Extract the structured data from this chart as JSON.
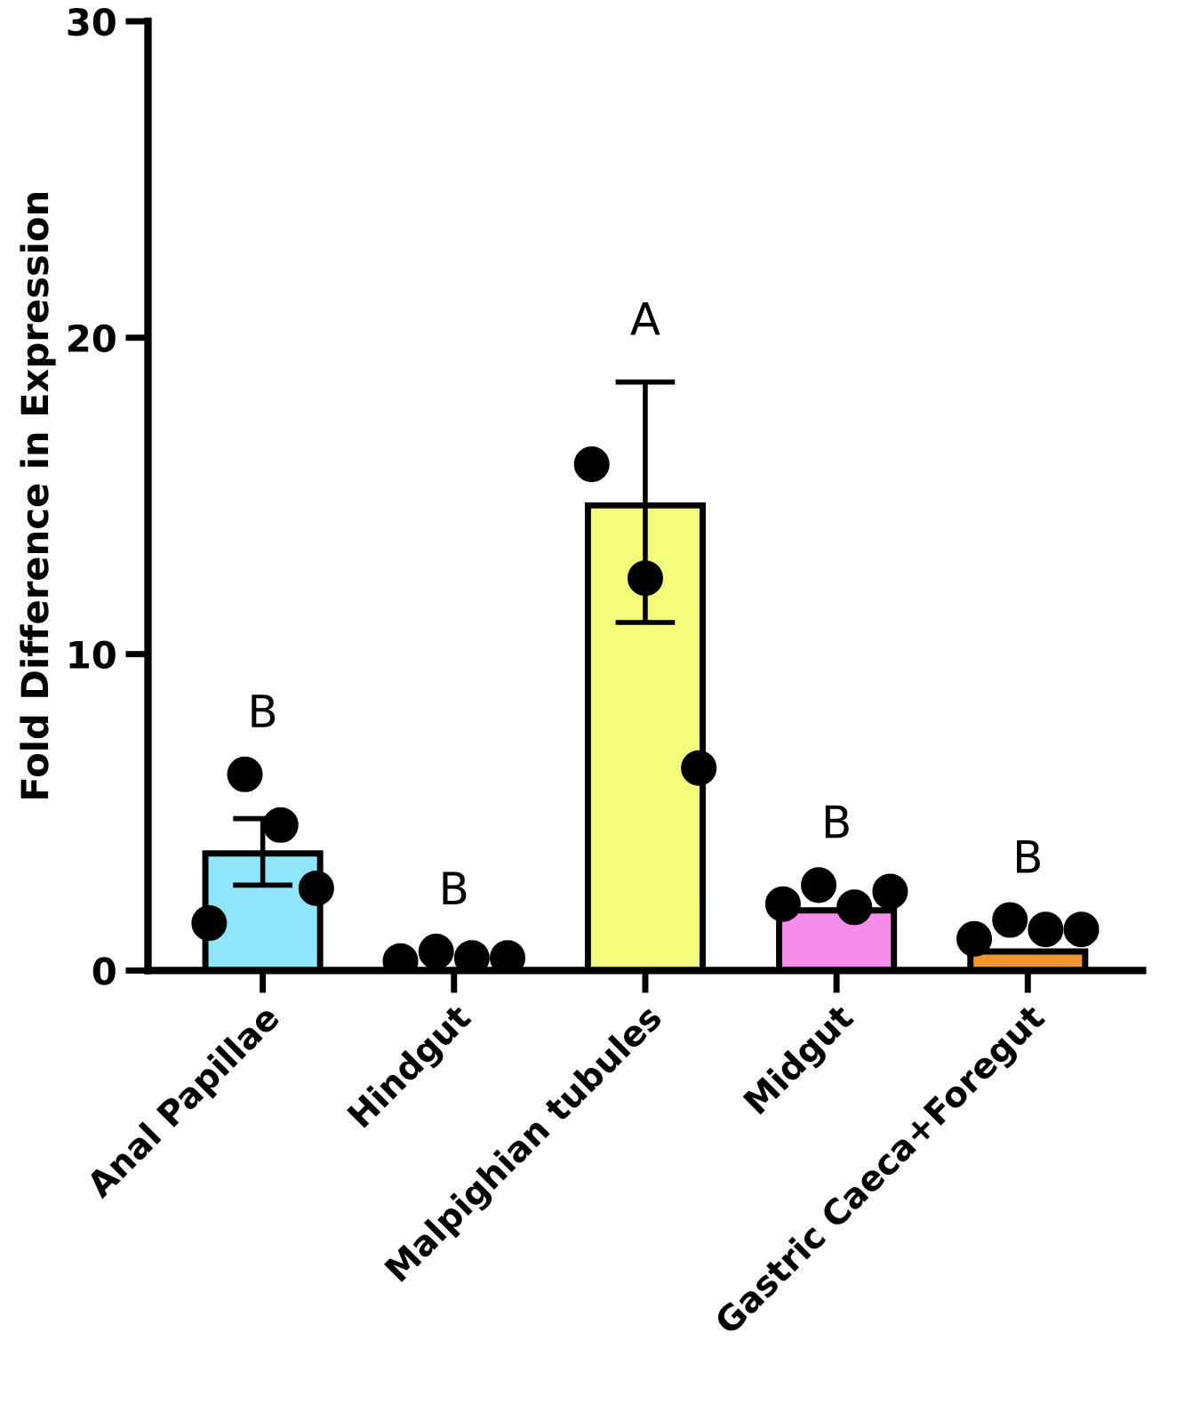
{
  "chart_data": {
    "type": "bar",
    "ylabel": "Fold Difference in Expression",
    "categories": [
      "Anal Papillae",
      "Hindgut",
      "Malpighian tubules",
      "Midgut",
      "Gastric Caeca+Foregut"
    ],
    "ylim": [
      0,
      30
    ],
    "yticks": [
      0,
      10,
      20,
      30
    ],
    "grid": false,
    "legend": false,
    "series": [
      {
        "values": [
          3.7,
          null,
          14.7,
          1.9,
          0.6
        ],
        "colors": [
          "#8fe5fb",
          "#d9d9d9",
          "#f4fc7c",
          "#f68de8",
          "#f0962e"
        ],
        "errors": [
          [
            2.7,
            4.8
          ],
          null,
          [
            11.0,
            18.6
          ],
          null,
          null
        ]
      },
      {
        "type": "scatter",
        "color": "#000000",
        "marker": "circle",
        "x": [
          "Anal Papillae",
          "Anal Papillae",
          "Anal Papillae",
          "Anal Papillae",
          "Hindgut",
          "Hindgut",
          "Hindgut",
          "Hindgut",
          "Malpighian tubules",
          "Malpighian tubules",
          "Malpighian tubules",
          "Midgut",
          "Midgut",
          "Midgut",
          "Midgut",
          "Gastric Caeca+Foregut",
          "Gastric Caeca+Foregut",
          "Gastric Caeca+Foregut",
          "Gastric Caeca+Foregut"
        ],
        "values": [
          1.5,
          6.2,
          4.6,
          2.6,
          0.3,
          0.6,
          0.4,
          0.4,
          16.0,
          12.4,
          6.4,
          2.1,
          2.7,
          2.0,
          2.5,
          1.0,
          1.6,
          1.3,
          1.3
        ]
      }
    ],
    "annotations": [
      "B",
      "B",
      "A",
      "B",
      "B"
    ]
  }
}
